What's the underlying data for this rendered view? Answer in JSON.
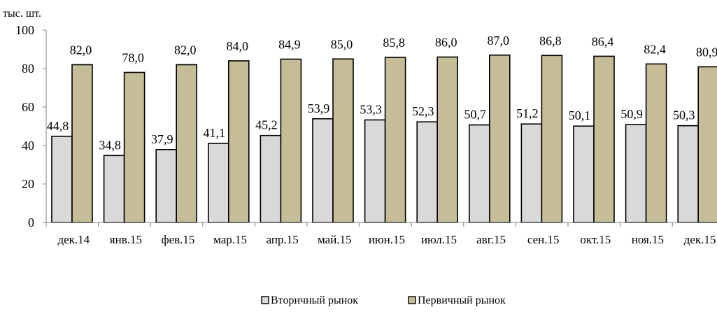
{
  "chart_data": {
    "type": "bar",
    "unit_label": "тыс. шт.",
    "categories": [
      "дек.14",
      "янв.15",
      "фев.15",
      "мар.15",
      "апр.15",
      "май.15",
      "июн.15",
      "июл.15",
      "авг.15",
      "сен.15",
      "окт.15",
      "ноя.15",
      "дек.15"
    ],
    "series": [
      {
        "name": "Вторичный рынок",
        "color": "#d9d9d9",
        "values": [
          44.8,
          34.8,
          37.9,
          41.1,
          45.2,
          53.9,
          53.3,
          52.3,
          50.7,
          51.2,
          50.1,
          50.9,
          50.3
        ],
        "labels": [
          "44,8",
          "34,8",
          "37,9",
          "41,1",
          "45,2",
          "53,9",
          "53,3",
          "52,3",
          "50,7",
          "51,2",
          "50,1",
          "50,9",
          "50,3"
        ]
      },
      {
        "name": "Первичный рынок",
        "color": "#c4bd97",
        "values": [
          82.0,
          78.0,
          82.0,
          84.0,
          84.9,
          85.0,
          85.8,
          86.0,
          87.0,
          86.8,
          86.4,
          82.4,
          80.9
        ],
        "labels": [
          "82,0",
          "78,0",
          "82,0",
          "84,0",
          "84,9",
          "85,0",
          "85,8",
          "86,0",
          "87,0",
          "86,8",
          "86,4",
          "82,4",
          "80,9"
        ]
      }
    ],
    "ylim": [
      0,
      100
    ],
    "yticks": [
      0,
      20,
      40,
      60,
      80,
      100
    ],
    "grid": false,
    "legend_position": "bottom"
  }
}
